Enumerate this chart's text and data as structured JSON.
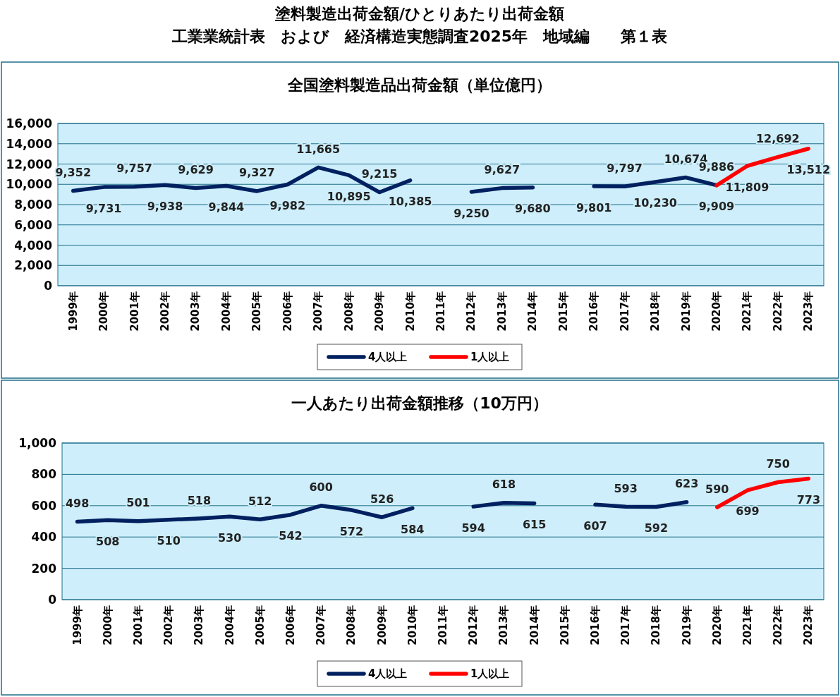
{
  "chart_data": [
    {
      "type": "line",
      "title": "全国塗料製造品出荷金額（単位億円）",
      "annotations": [
        "塗料製造出荷金額/ひとりあたり出荷金額",
        "工業業統計表　および　経済構造実態調査2025年　地域編　　第１表"
      ],
      "categories": [
        "1999年",
        "2000年",
        "2001年",
        "2002年",
        "2003年",
        "2004年",
        "2005年",
        "2006年",
        "2007年",
        "2008年",
        "2009年",
        "2010年",
        "2011年",
        "2012年",
        "2013年",
        "2014年",
        "2015年",
        "2016年",
        "2017年",
        "2018年",
        "2019年",
        "2020年",
        "2021年",
        "2022年",
        "2023年"
      ],
      "series": [
        {
          "name": "4人以上",
          "color": "#002060",
          "values": [
            9352,
            9731,
            9757,
            9938,
            9629,
            9844,
            9327,
            9982,
            11665,
            10895,
            9215,
            10385,
            null,
            9250,
            9627,
            9680,
            null,
            9801,
            9797,
            10230,
            10674,
            9909,
            null,
            null,
            null
          ],
          "value_labels": [
            "9,352",
            "9,731",
            "9,757",
            "9,938",
            "9,629",
            "9,844",
            "9,327",
            "9,982",
            "11,665",
            "10,895",
            "9,215",
            "10,385",
            null,
            "9,250",
            "9,627",
            "9,680",
            null,
            "9,801",
            "9,797",
            "10,230",
            "10,674",
            "9,909",
            null,
            null,
            null
          ]
        },
        {
          "name": "1人以上",
          "color": "#ff0000",
          "values": [
            null,
            null,
            null,
            null,
            null,
            null,
            null,
            null,
            null,
            null,
            null,
            null,
            null,
            null,
            null,
            null,
            null,
            null,
            null,
            null,
            null,
            9886,
            11809,
            12692,
            13512
          ],
          "value_labels": [
            null,
            null,
            null,
            null,
            null,
            null,
            null,
            null,
            null,
            null,
            null,
            null,
            null,
            null,
            null,
            null,
            null,
            null,
            null,
            null,
            null,
            "9,886",
            "11,809",
            "12,692",
            "13,512"
          ]
        }
      ],
      "ylim": [
        0,
        16000
      ],
      "yticks": [
        0,
        {
          "value": 2000,
          "label": "2,000"
        },
        {
          "value": 4000,
          "label": "4,000"
        },
        {
          "value": 6000,
          "label": "6,000"
        },
        {
          "value": 8000,
          "label": "8,000"
        },
        {
          "value": 10000,
          "label": "10,000"
        },
        {
          "value": 12000,
          "label": "12,000"
        },
        {
          "value": 14000,
          "label": "14,000"
        },
        {
          "value": 16000,
          "label": "16,000"
        }
      ],
      "grid": "y",
      "legend": "bottom",
      "marker": "none",
      "line_style": "solid"
    },
    {
      "type": "line",
      "title": "一人あたり出荷金額推移（10万円）",
      "categories": [
        "1999年",
        "2000年",
        "2001年",
        "2002年",
        "2003年",
        "2004年",
        "2005年",
        "2006年",
        "2007年",
        "2008年",
        "2009年",
        "2010年",
        "2011年",
        "2012年",
        "2013年",
        "2014年",
        "2015年",
        "2016年",
        "2017年",
        "2018年",
        "2019年",
        "2020年",
        "2021年",
        "2022年",
        "2023年"
      ],
      "series": [
        {
          "name": "4人以上",
          "color": "#002060",
          "values": [
            498,
            508,
            501,
            510,
            518,
            530,
            512,
            542,
            600,
            572,
            526,
            584,
            null,
            594,
            618,
            615,
            null,
            607,
            593,
            592,
            623,
            null,
            null,
            null,
            null
          ],
          "data_labels": true
        },
        {
          "name": "1人以上",
          "color": "#ff0000",
          "values": [
            null,
            null,
            null,
            null,
            null,
            null,
            null,
            null,
            null,
            null,
            null,
            null,
            null,
            null,
            null,
            null,
            null,
            null,
            null,
            null,
            null,
            590,
            699,
            750,
            773
          ],
          "data_labels": true
        }
      ],
      "ylim": [
        0,
        1000
      ],
      "yticks": [
        0,
        200,
        400,
        600,
        800,
        {
          "value": 1000,
          "label": "1,000"
        }
      ],
      "grid": "y",
      "legend": "bottom",
      "marker": "none",
      "line_style": "solid"
    }
  ]
}
